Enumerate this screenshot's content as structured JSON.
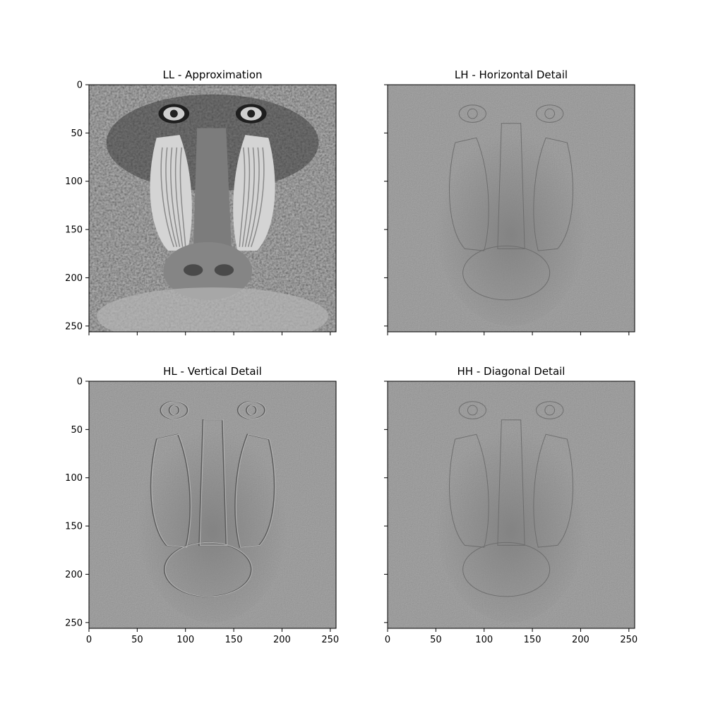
{
  "chart_data": {
    "type": "heatmap",
    "colormap": "gray",
    "layout": "2x2 grid",
    "sharex": true,
    "sharey": true,
    "xlim": [
      0,
      256
    ],
    "ylim": [
      256,
      0
    ],
    "xticks": [
      0,
      50,
      100,
      150,
      200,
      250
    ],
    "yticks": [
      0,
      50,
      100,
      150,
      200,
      250
    ],
    "panels": [
      {
        "title": "LL - Approximation",
        "content": "grayscale mandrill face (low-pass approximation)",
        "show_xticklabels": false,
        "show_yticklabels": true
      },
      {
        "title": "LH - Horizontal Detail",
        "content": "mid-gray field with faint horizontal edge detail",
        "show_xticklabels": false,
        "show_yticklabels": false
      },
      {
        "title": "HL - Vertical Detail",
        "content": "mid-gray field with vertical edge detail (embossed outline)",
        "show_xticklabels": true,
        "show_yticklabels": true
      },
      {
        "title": "HH - Diagonal Detail",
        "content": "mid-gray field with fine diagonal noise texture",
        "show_xticklabels": true,
        "show_yticklabels": false
      }
    ]
  }
}
